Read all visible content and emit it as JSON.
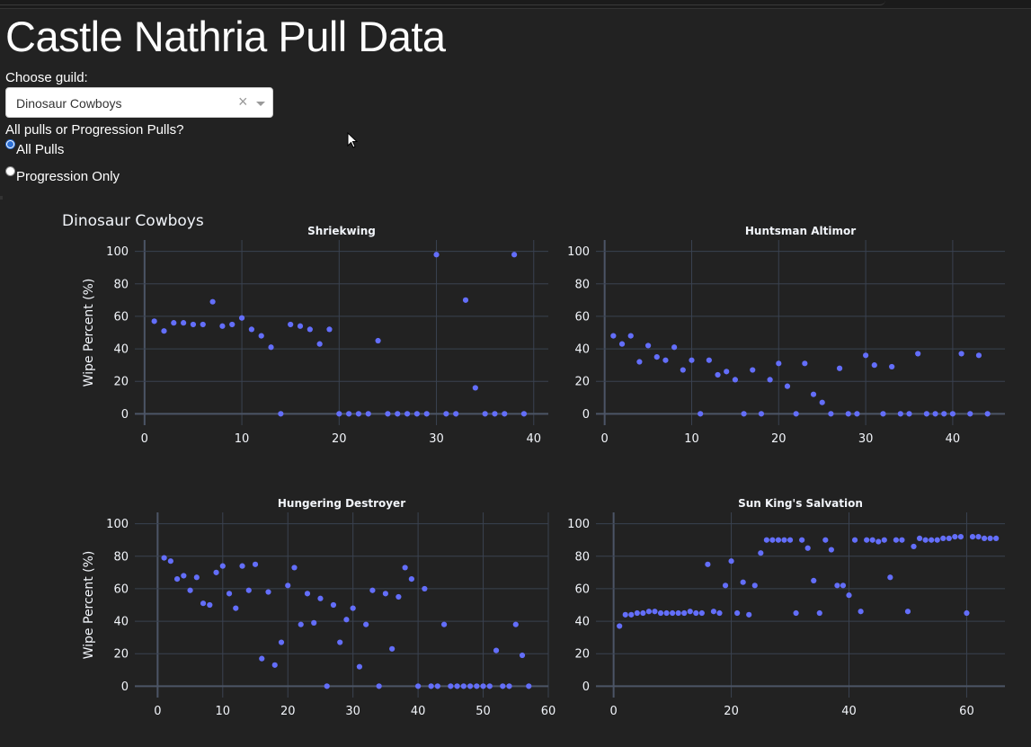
{
  "page": {
    "title": "Castle Nathria Pull Data",
    "guild_label": "Choose guild:",
    "guild_selected": "Dinosaur Cowboys",
    "clear_glyph": "×",
    "mode_label": "All pulls or Progression Pulls?",
    "mode_options": [
      {
        "label": "All Pulls",
        "selected": true
      },
      {
        "label": "Progression Only",
        "selected": false
      }
    ]
  },
  "colors": {
    "background": "#222222",
    "plot_bg": "#222222",
    "grid": "#3a4250",
    "axis_zero": "#4c5566",
    "marker": "#636efa",
    "text": "#f2f5fa"
  },
  "chart_data": {
    "type": "scatter",
    "title": "Dinosaur Cowboys",
    "ylabel": "Wipe Percent (%)",
    "subplots": [
      {
        "title": "Shriekwing",
        "xlim": [
          -1,
          41.5
        ],
        "ylim": [
          -7,
          107
        ],
        "xticks": [
          0,
          10,
          20,
          30,
          40
        ],
        "yticks": [
          0,
          20,
          40,
          60,
          80,
          100
        ],
        "x": [
          1,
          2,
          3,
          4,
          5,
          6,
          7,
          8,
          9,
          10,
          11,
          12,
          13,
          14,
          15,
          16,
          17,
          18,
          19,
          20,
          21,
          22,
          23,
          24,
          25,
          26,
          27,
          28,
          29,
          30,
          31,
          32,
          33,
          34,
          35,
          36,
          37,
          38,
          39
        ],
        "y": [
          57,
          51,
          56,
          56,
          55,
          55,
          69,
          54,
          55,
          59,
          52,
          48,
          41,
          0,
          55,
          54,
          52,
          43,
          52,
          0,
          0,
          0,
          0,
          45,
          0,
          0,
          0,
          0,
          0,
          98,
          0,
          0,
          70,
          16,
          0,
          0,
          0,
          98,
          0
        ]
      },
      {
        "title": "Huntsman Altimor",
        "xlim": [
          -1,
          46
        ],
        "ylim": [
          -7,
          107
        ],
        "xticks": [
          0,
          10,
          20,
          30,
          40
        ],
        "yticks": [
          0,
          20,
          40,
          60,
          80,
          100
        ],
        "x": [
          1,
          2,
          3,
          4,
          5,
          6,
          7,
          8,
          9,
          10,
          11,
          12,
          13,
          14,
          15,
          16,
          17,
          18,
          19,
          20,
          21,
          22,
          23,
          24,
          25,
          26,
          27,
          28,
          29,
          30,
          31,
          32,
          33,
          34,
          35,
          36,
          37,
          38,
          39,
          40,
          41,
          42,
          43,
          44
        ],
        "y": [
          48,
          43,
          48,
          32,
          42,
          35,
          33,
          41,
          27,
          33,
          0,
          33,
          24,
          26,
          21,
          0,
          27,
          0,
          21,
          31,
          17,
          0,
          31,
          12,
          7,
          0,
          28,
          0,
          0,
          36,
          30,
          0,
          29,
          0,
          0,
          37,
          0,
          0,
          0,
          0,
          37,
          0,
          36,
          0
        ]
      },
      {
        "title": "Hungering Destroyer",
        "xlim": [
          -3.5,
          60
        ],
        "ylim": [
          -7,
          107
        ],
        "xticks": [
          0,
          10,
          20,
          30,
          40,
          50,
          60
        ],
        "yticks": [
          0,
          20,
          40,
          60,
          80,
          100
        ],
        "x": [
          1,
          2,
          3,
          4,
          5,
          6,
          7,
          8,
          9,
          10,
          11,
          12,
          13,
          14,
          15,
          16,
          17,
          18,
          19,
          20,
          21,
          22,
          23,
          24,
          25,
          26,
          27,
          28,
          29,
          30,
          31,
          32,
          33,
          34,
          35,
          36,
          37,
          38,
          39,
          40,
          41,
          42,
          43,
          44,
          45,
          46,
          47,
          48,
          49,
          50,
          51,
          52,
          53,
          54,
          55,
          56,
          57
        ],
        "y": [
          79,
          77,
          66,
          68,
          59,
          67,
          51,
          50,
          70,
          74,
          57,
          48,
          74,
          59,
          75,
          17,
          58,
          13,
          27,
          62,
          73,
          38,
          57,
          39,
          54,
          0,
          50,
          27,
          41,
          48,
          12,
          38,
          59,
          0,
          57,
          23,
          55,
          73,
          66,
          0,
          60,
          0,
          0,
          38,
          0,
          0,
          0,
          0,
          0,
          0,
          0,
          22,
          0,
          0,
          38,
          19,
          0
        ]
      },
      {
        "title": "Sun King's Salvation",
        "xlim": [
          -3,
          66.5
        ],
        "ylim": [
          -7,
          107
        ],
        "xticks": [
          0,
          20,
          40,
          60
        ],
        "yticks": [
          0,
          20,
          40,
          60,
          80,
          100
        ],
        "x": [
          1,
          2,
          3,
          4,
          5,
          6,
          7,
          8,
          9,
          10,
          11,
          12,
          13,
          14,
          15,
          16,
          17,
          18,
          19,
          20,
          21,
          22,
          23,
          24,
          25,
          26,
          27,
          28,
          29,
          30,
          31,
          32,
          33,
          34,
          35,
          36,
          37,
          38,
          39,
          40,
          41,
          42,
          43,
          44,
          45,
          46,
          47,
          48,
          49,
          50,
          51,
          52,
          53,
          54,
          55,
          56,
          57,
          58,
          59,
          60,
          61,
          62,
          63,
          64,
          65
        ],
        "y": [
          37,
          44,
          44,
          45,
          45,
          46,
          46,
          45,
          45,
          45,
          45,
          45,
          46,
          45,
          45,
          75,
          46,
          45,
          62,
          77,
          45,
          64,
          44,
          62,
          82,
          90,
          90,
          90,
          90,
          90,
          45,
          90,
          85,
          65,
          45,
          90,
          84,
          62,
          62,
          56,
          90,
          46,
          90,
          90,
          89,
          90,
          67,
          90,
          90,
          46,
          86,
          91,
          90,
          90,
          90,
          91,
          91,
          92,
          92,
          45,
          92,
          92,
          91,
          91,
          91
        ]
      }
    ]
  }
}
